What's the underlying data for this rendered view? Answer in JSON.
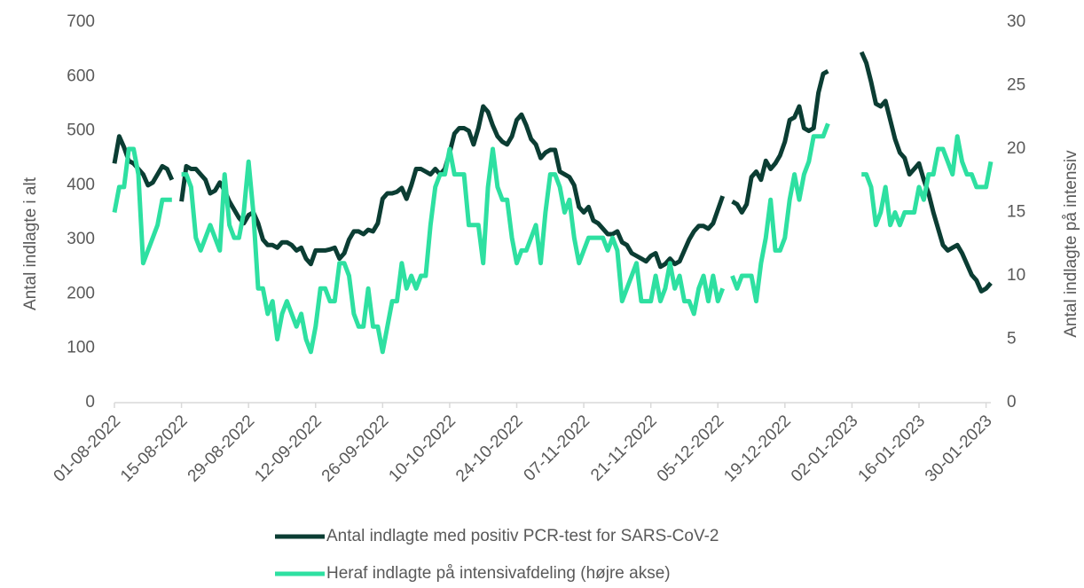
{
  "chart_data": {
    "type": "line",
    "y_label": "Antal indlagte i alt",
    "y2_label": "Antal indlagte på intensiv",
    "x": [
      "01-08-2022",
      "02-08-2022",
      "03-08-2022",
      "04-08-2022",
      "05-08-2022",
      "06-08-2022",
      "07-08-2022",
      "08-08-2022",
      "09-08-2022",
      "10-08-2022",
      "11-08-2022",
      "12-08-2022",
      "13-08-2022",
      "14-08-2022",
      "15-08-2022",
      "16-08-2022",
      "17-08-2022",
      "18-08-2022",
      "19-08-2022",
      "20-08-2022",
      "21-08-2022",
      "22-08-2022",
      "23-08-2022",
      "24-08-2022",
      "25-08-2022",
      "26-08-2022",
      "27-08-2022",
      "28-08-2022",
      "29-08-2022",
      "30-08-2022",
      "31-08-2022",
      "01-09-2022",
      "02-09-2022",
      "03-09-2022",
      "04-09-2022",
      "05-09-2022",
      "06-09-2022",
      "07-09-2022",
      "08-09-2022",
      "09-09-2022",
      "10-09-2022",
      "11-09-2022",
      "12-09-2022",
      "13-09-2022",
      "14-09-2022",
      "15-09-2022",
      "16-09-2022",
      "17-09-2022",
      "18-09-2022",
      "19-09-2022",
      "20-09-2022",
      "21-09-2022",
      "22-09-2022",
      "23-09-2022",
      "24-09-2022",
      "25-09-2022",
      "26-09-2022",
      "27-09-2022",
      "28-09-2022",
      "29-09-2022",
      "30-09-2022",
      "01-10-2022",
      "02-10-2022",
      "03-10-2022",
      "04-10-2022",
      "05-10-2022",
      "06-10-2022",
      "07-10-2022",
      "08-10-2022",
      "09-10-2022",
      "10-10-2022",
      "11-10-2022",
      "12-10-2022",
      "13-10-2022",
      "14-10-2022",
      "15-10-2022",
      "16-10-2022",
      "17-10-2022",
      "18-10-2022",
      "19-10-2022",
      "20-10-2022",
      "21-10-2022",
      "22-10-2022",
      "23-10-2022",
      "24-10-2022",
      "25-10-2022",
      "26-10-2022",
      "27-10-2022",
      "28-10-2022",
      "29-10-2022",
      "30-10-2022",
      "31-10-2022",
      "01-11-2022",
      "02-11-2022",
      "03-11-2022",
      "04-11-2022",
      "05-11-2022",
      "06-11-2022",
      "07-11-2022",
      "08-11-2022",
      "09-11-2022",
      "10-11-2022",
      "11-11-2022",
      "12-11-2022",
      "13-11-2022",
      "14-11-2022",
      "15-11-2022",
      "16-11-2022",
      "17-11-2022",
      "18-11-2022",
      "19-11-2022",
      "20-11-2022",
      "21-11-2022",
      "22-11-2022",
      "23-11-2022",
      "24-11-2022",
      "25-11-2022",
      "26-11-2022",
      "27-11-2022",
      "28-11-2022",
      "29-11-2022",
      "30-11-2022",
      "01-12-2022",
      "02-12-2022",
      "03-12-2022",
      "04-12-2022",
      "05-12-2022",
      "06-12-2022",
      "07-12-2022",
      "08-12-2022",
      "09-12-2022",
      "10-12-2022",
      "11-12-2022",
      "12-12-2022",
      "13-12-2022",
      "14-12-2022",
      "15-12-2022",
      "16-12-2022",
      "17-12-2022",
      "18-12-2022",
      "19-12-2022",
      "20-12-2022",
      "21-12-2022",
      "22-12-2022",
      "23-12-2022",
      "24-12-2022",
      "25-12-2022",
      "26-12-2022",
      "27-12-2022",
      "28-12-2022",
      "29-12-2022",
      "30-12-2022",
      "31-12-2022",
      "01-01-2023",
      "02-01-2023",
      "03-01-2023",
      "04-01-2023",
      "05-01-2023",
      "06-01-2023",
      "07-01-2023",
      "08-01-2023",
      "09-01-2023",
      "10-01-2023",
      "11-01-2023",
      "12-01-2023",
      "13-01-2023",
      "14-01-2023",
      "15-01-2023",
      "16-01-2023",
      "17-01-2023",
      "18-01-2023",
      "19-01-2023",
      "20-01-2023",
      "21-01-2023",
      "22-01-2023",
      "23-01-2023",
      "24-01-2023",
      "25-01-2023",
      "26-01-2023",
      "27-01-2023",
      "28-01-2023",
      "29-01-2023",
      "30-01-2023",
      "31-01-2023"
    ],
    "series": [
      {
        "name": "Antal indlagte med positiv PCR-test for SARS-CoV-2",
        "color": "#0b3d33",
        "values": [
          440,
          490,
          470,
          445,
          440,
          430,
          420,
          400,
          405,
          420,
          435,
          430,
          410,
          null,
          370,
          435,
          430,
          430,
          420,
          410,
          385,
          390,
          405,
          390,
          370,
          355,
          340,
          330,
          345,
          350,
          330,
          300,
          290,
          290,
          285,
          295,
          295,
          290,
          280,
          285,
          265,
          255,
          280,
          280,
          280,
          282,
          285,
          265,
          275,
          300,
          315,
          315,
          310,
          318,
          315,
          330,
          375,
          385,
          385,
          388,
          395,
          375,
          400,
          430,
          430,
          425,
          420,
          430,
          420,
          430,
          460,
          495,
          505,
          505,
          500,
          475,
          505,
          545,
          535,
          510,
          490,
          480,
          475,
          490,
          520,
          530,
          510,
          485,
          475,
          450,
          460,
          465,
          465,
          425,
          420,
          415,
          400,
          360,
          350,
          360,
          335,
          330,
          320,
          310,
          310,
          315,
          295,
          290,
          275,
          270,
          265,
          260,
          270,
          275,
          250,
          255,
          265,
          255,
          260,
          280,
          300,
          315,
          325,
          325,
          320,
          330,
          355,
          380,
          null,
          370,
          365,
          350,
          365,
          415,
          425,
          410,
          445,
          430,
          440,
          455,
          480,
          520,
          525,
          545,
          505,
          500,
          505,
          570,
          605,
          610,
          null,
          null,
          null,
          null,
          null,
          null,
          645,
          625,
          590,
          550,
          545,
          555,
          520,
          485,
          460,
          450,
          420,
          430,
          440,
          410,
          385,
          350,
          320,
          290,
          280,
          285,
          290,
          275,
          255,
          235,
          225,
          205,
          210,
          220
        ]
      },
      {
        "name": "Heraf indlagte på intensivafdeling (højre akse)",
        "color": "#2ee0a1",
        "axis": "y2",
        "values": [
          15,
          17,
          17,
          20,
          20,
          18,
          11,
          12,
          13,
          14,
          16,
          16,
          16,
          null,
          18,
          18,
          17,
          13,
          12,
          13,
          14,
          13,
          12,
          18,
          14,
          13,
          13,
          15,
          19,
          15,
          9,
          9,
          7,
          8,
          5,
          7,
          8,
          7,
          6,
          7,
          5,
          4,
          6,
          9,
          9,
          8,
          8,
          11,
          11,
          10,
          7,
          6,
          6,
          9,
          6,
          6,
          4,
          6,
          8,
          8,
          11,
          9,
          10,
          9,
          10,
          10,
          14,
          17,
          18,
          18,
          20,
          18,
          18,
          18,
          14,
          14,
          14,
          11,
          17,
          20,
          17,
          16,
          16,
          13,
          11,
          12,
          12,
          13,
          14,
          11,
          15,
          18,
          18,
          17,
          15,
          16,
          13,
          11,
          12,
          13,
          13,
          13,
          13,
          12,
          13,
          12,
          8,
          9,
          10,
          11,
          8,
          8,
          8,
          10,
          8,
          9,
          11,
          9,
          10,
          8,
          8,
          7,
          9,
          10,
          8,
          10,
          8,
          9,
          null,
          10,
          9,
          10,
          10,
          10,
          8,
          11,
          13,
          16,
          12,
          12,
          13,
          16,
          18,
          16,
          18,
          19,
          21,
          21,
          21,
          22,
          null,
          null,
          null,
          null,
          null,
          null,
          18,
          18,
          17,
          14,
          15,
          17,
          14,
          15,
          14,
          15,
          15,
          15,
          17,
          16,
          18,
          18,
          20,
          20,
          19,
          18,
          21,
          19,
          18,
          18,
          17,
          17,
          17,
          19
        ]
      }
    ],
    "xlim": [
      "01-08-2022",
      "31-01-2023"
    ],
    "xticks": [
      "01-08-2022",
      "15-08-2022",
      "29-08-2022",
      "12-09-2022",
      "26-09-2022",
      "10-10-2022",
      "24-10-2022",
      "07-11-2022",
      "21-11-2022",
      "05-12-2022",
      "19-12-2022",
      "02-01-2023",
      "16-01-2023",
      "30-01-2023"
    ],
    "ylim": [
      0,
      700
    ],
    "yticks": [
      0,
      100,
      200,
      300,
      400,
      500,
      600,
      700
    ],
    "y2lim": [
      0,
      30
    ],
    "y2ticks": [
      0,
      5,
      10,
      15,
      20,
      25,
      30
    ],
    "grid": false,
    "legend": "bottom"
  }
}
